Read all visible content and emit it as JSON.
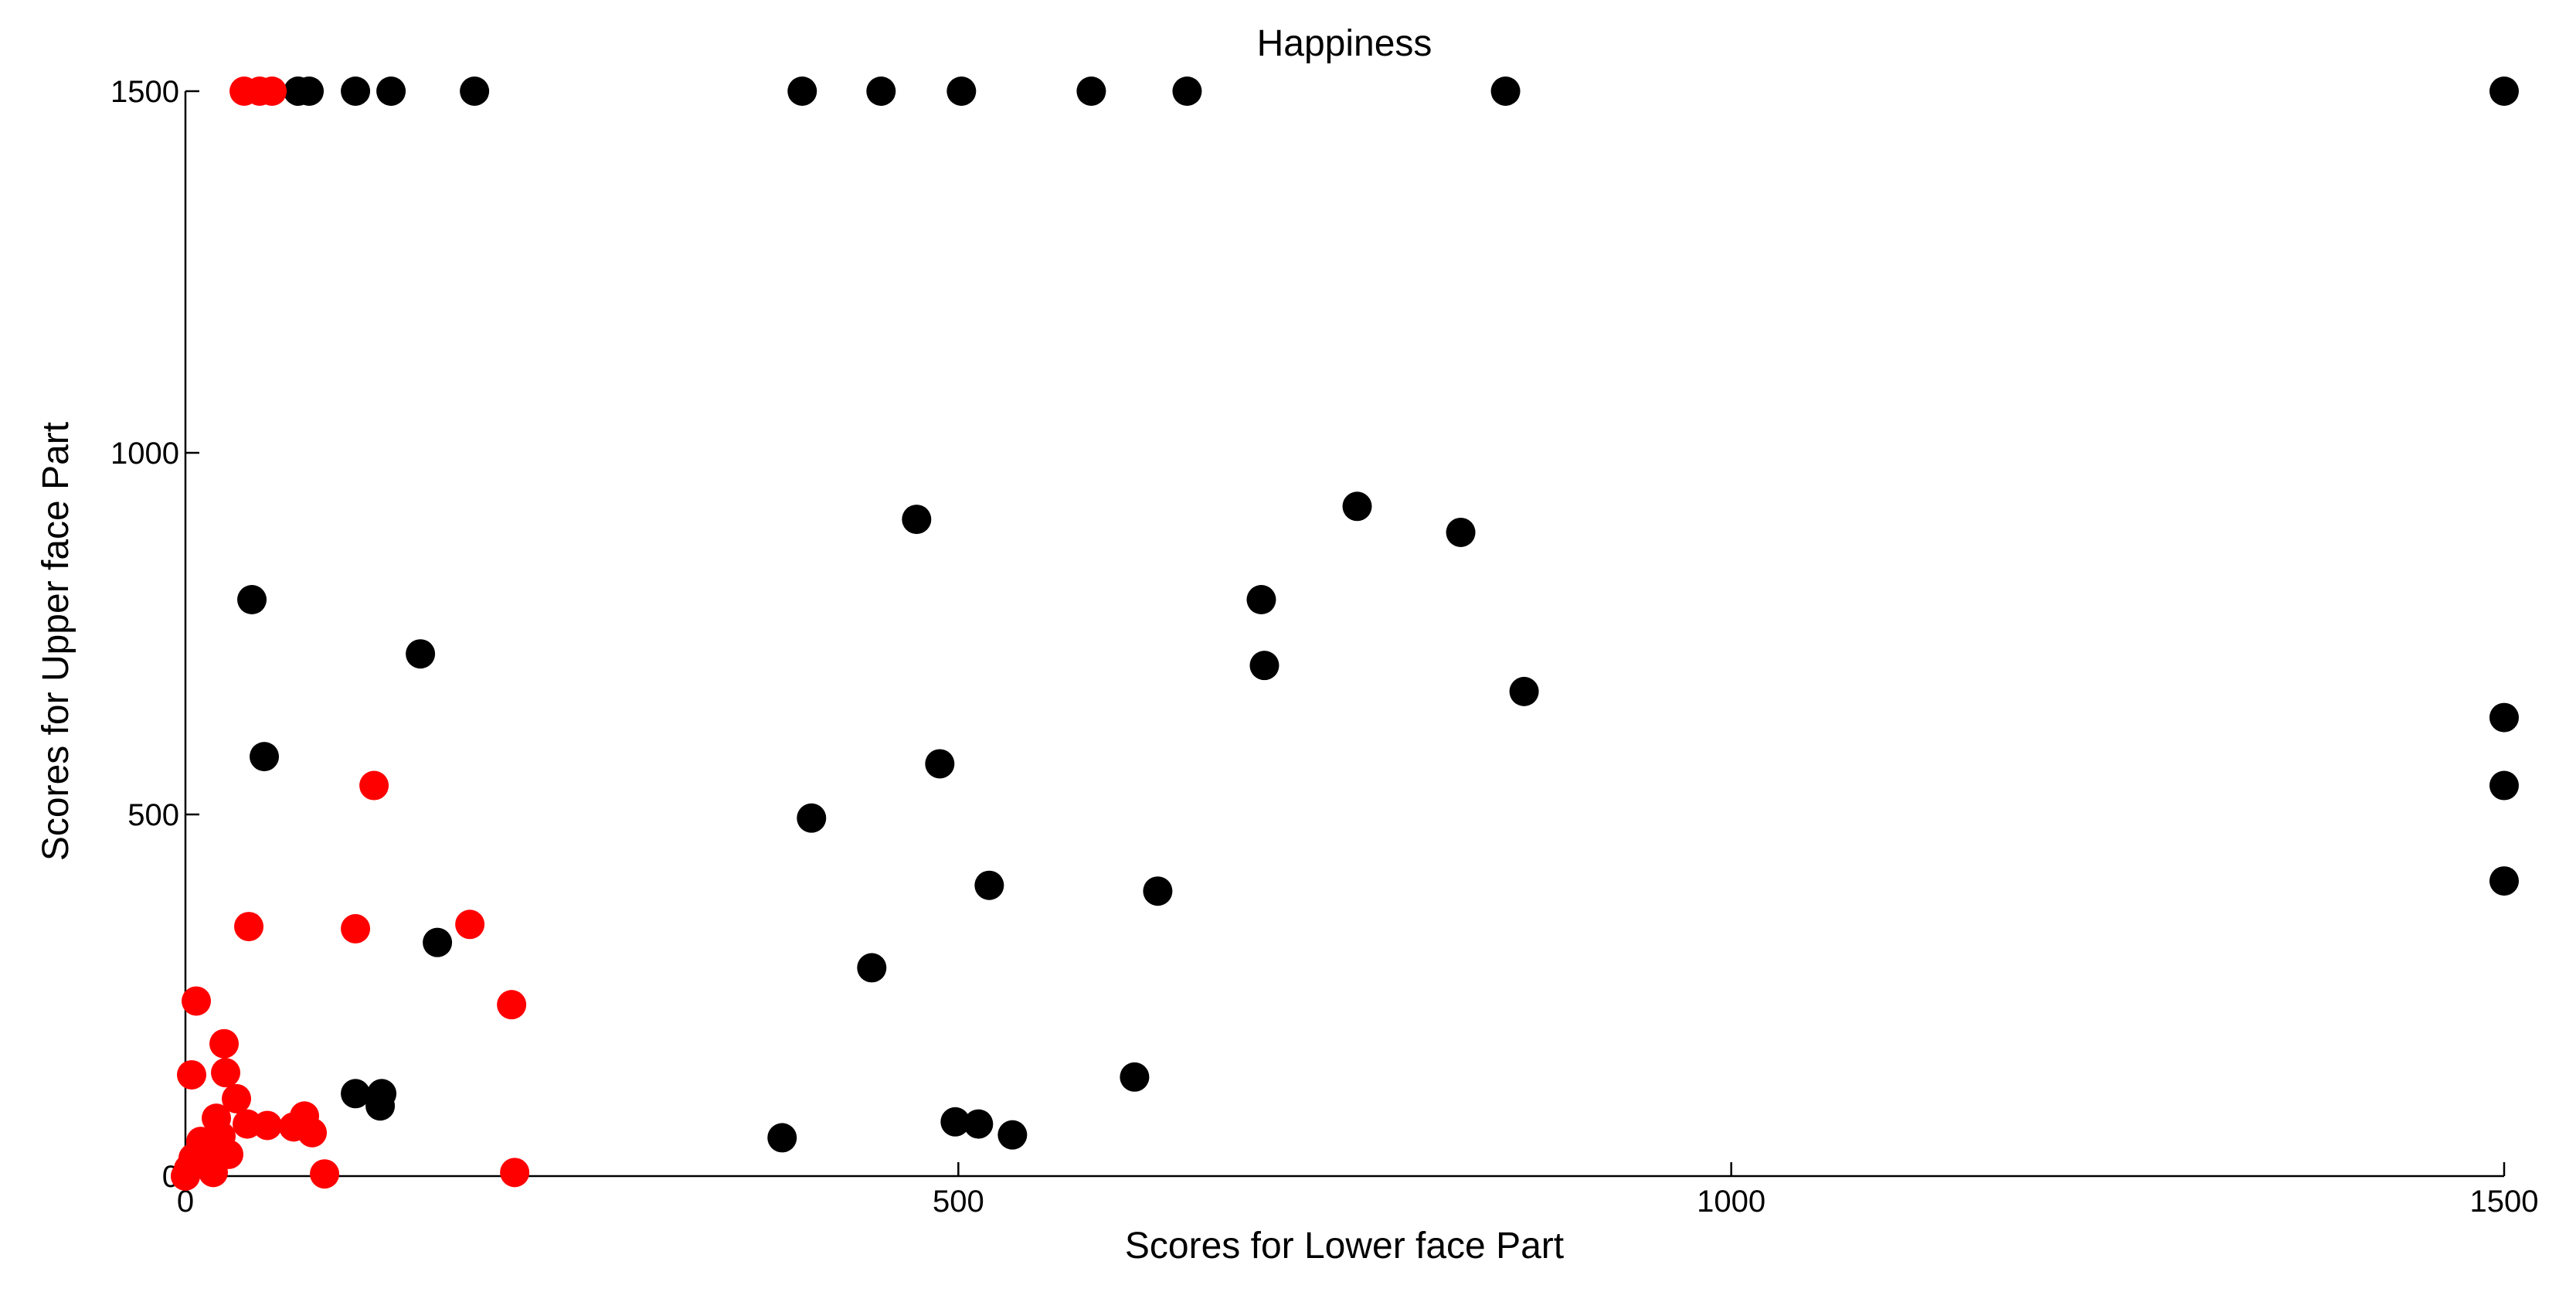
{
  "chart_data": {
    "type": "scatter",
    "title": "Happiness",
    "xlabel": "Scores for Lower face Part",
    "ylabel": "Scores for Upper face Part",
    "xlim": [
      0,
      1500
    ],
    "ylim": [
      0,
      1500
    ],
    "xticks": [
      0,
      500,
      1000,
      1500
    ],
    "yticks": [
      0,
      500,
      1000,
      1500
    ],
    "grid": false,
    "series": [
      {
        "color": "#000000",
        "points": [
          [
            73,
            1500
          ],
          [
            80,
            1500
          ],
          [
            110,
            1500
          ],
          [
            133,
            1500
          ],
          [
            187,
            1500
          ],
          [
            399,
            1500
          ],
          [
            450,
            1500
          ],
          [
            502,
            1500
          ],
          [
            586,
            1500
          ],
          [
            648,
            1500
          ],
          [
            854,
            1500
          ],
          [
            1500,
            1500
          ],
          [
            473,
            908
          ],
          [
            758,
            926
          ],
          [
            825,
            890
          ],
          [
            696,
            797
          ],
          [
            698,
            706
          ],
          [
            866,
            670
          ],
          [
            43,
            797
          ],
          [
            152,
            722
          ],
          [
            51,
            580
          ],
          [
            488,
            570
          ],
          [
            405,
            495
          ],
          [
            520,
            402
          ],
          [
            629,
            394
          ],
          [
            163,
            323
          ],
          [
            444,
            288
          ],
          [
            614,
            137
          ],
          [
            110,
            114
          ],
          [
            127,
            114
          ],
          [
            126,
            97
          ],
          [
            386,
            53
          ],
          [
            498,
            75
          ],
          [
            513,
            72
          ],
          [
            535,
            57
          ],
          [
            1500,
            634
          ],
          [
            1500,
            540
          ],
          [
            1500,
            408
          ]
        ]
      },
      {
        "color": "#ff0000",
        "points": [
          [
            38,
            1500
          ],
          [
            48,
            1500
          ],
          [
            56,
            1500
          ],
          [
            122,
            540
          ],
          [
            41,
            345
          ],
          [
            110,
            342
          ],
          [
            184,
            348
          ],
          [
            211,
            237
          ],
          [
            7,
            242
          ],
          [
            4,
            140
          ],
          [
            25,
            183
          ],
          [
            26,
            143
          ],
          [
            33,
            107
          ],
          [
            20,
            80
          ],
          [
            10,
            48
          ],
          [
            15,
            40
          ],
          [
            23,
            55
          ],
          [
            5,
            25
          ],
          [
            2,
            10
          ],
          [
            18,
            5
          ],
          [
            28,
            30
          ],
          [
            40,
            72
          ],
          [
            53,
            70
          ],
          [
            70,
            68
          ],
          [
            77,
            83
          ],
          [
            82,
            60
          ],
          [
            90,
            3
          ],
          [
            213,
            5
          ],
          [
            0,
            0
          ]
        ]
      }
    ]
  }
}
